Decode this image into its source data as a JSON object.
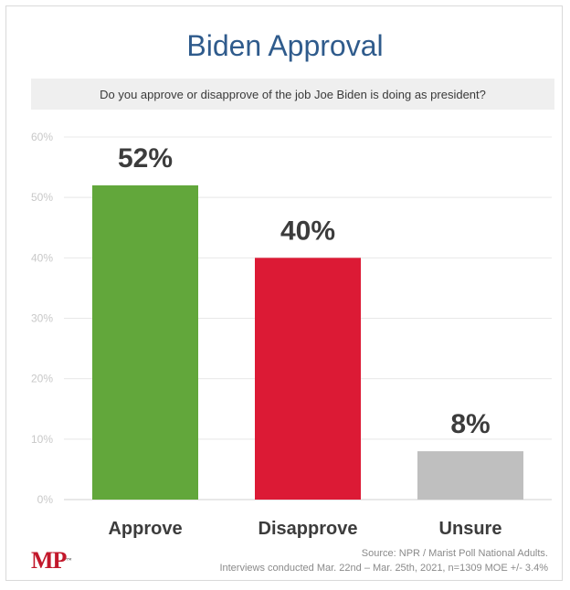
{
  "chart_data": {
    "type": "bar",
    "title": "Biden Approval",
    "subtitle": "Do you approve or disapprove of the job Joe Biden is doing as president?",
    "categories": [
      "Approve",
      "Disapprove",
      "Unsure"
    ],
    "values": [
      52,
      40,
      8
    ],
    "data_labels": [
      "52%",
      "40%",
      "8%"
    ],
    "colors": [
      "#62a73b",
      "#dc1a35",
      "#bfbfbf"
    ],
    "ylim": [
      0,
      60
    ],
    "yticks": [
      "0%",
      "10%",
      "20%",
      "30%",
      "40%",
      "50%",
      "60%"
    ],
    "grid": true,
    "legend": "none"
  },
  "footer": {
    "logo": "MP",
    "source_line1": "Source: NPR / Marist Poll National Adults.",
    "source_line2": "Interviews conducted Mar. 22nd – Mar. 25th, 2021, n=1309 MOE +/- 3.4%"
  }
}
